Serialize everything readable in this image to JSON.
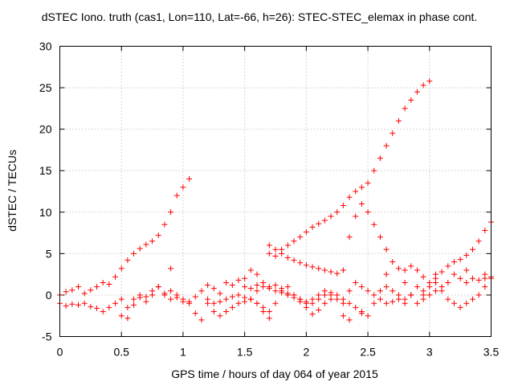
{
  "chart_data": {
    "type": "scatter",
    "title": "dSTEC Iono. truth (cas1, Lon=110, Lat=-66, h=26): STEC-STEC_elemax in phase cont.",
    "xlabel": "GPS time / hours of day 064 of year 2015",
    "ylabel": "dSTEC  / TECUs",
    "xlim": [
      0,
      3.5
    ],
    "ylim": [
      -5,
      30
    ],
    "xticks": [
      "0",
      "0.5",
      "1",
      "1.5",
      "2",
      "2.5",
      "3",
      "3.5"
    ],
    "yticks": [
      "-5",
      "0",
      "5",
      "10",
      "15",
      "20",
      "25",
      "30"
    ],
    "grid": true,
    "marker": "+",
    "color": "#ff0000",
    "series": [
      {
        "x": [
          0.0,
          0.05,
          0.1,
          0.15,
          0.2,
          0.25,
          0.3,
          0.35,
          0.4,
          0.45,
          0.5,
          0.55,
          0.6,
          0.65,
          0.7,
          0.75,
          0.8,
          0.85,
          0.9,
          0.95,
          1.0,
          1.05
        ],
        "y": [
          0.0,
          0.4,
          0.6,
          1.0,
          0.2,
          0.6,
          1.0,
          1.5,
          1.3,
          2.2,
          3.2,
          4.2,
          5.0,
          5.6,
          6.1,
          6.5,
          7.2,
          8.5,
          10.0,
          12.0,
          13.0,
          14.0
        ]
      },
      {
        "x": [
          0.0,
          0.05,
          0.1,
          0.15,
          0.2,
          0.25,
          0.3,
          0.35,
          0.4,
          0.45,
          0.5,
          0.55,
          0.6,
          0.65,
          0.7,
          0.75,
          0.8,
          0.85,
          0.9,
          0.95,
          1.0,
          1.05,
          1.1,
          1.15,
          1.2,
          1.25,
          1.3,
          1.35,
          1.4,
          1.45,
          1.5,
          1.55,
          1.6,
          1.65,
          1.7
        ],
        "y": [
          -1.0,
          -1.3,
          -1.1,
          -1.2,
          -1.0,
          -1.4,
          -1.6,
          -2.0,
          -1.5,
          -1.0,
          -2.5,
          -2.8,
          -0.5,
          -0.3,
          -0.8,
          0.5,
          1.0,
          0.2,
          -0.5,
          -0.3,
          -0.8,
          -1.0,
          -2.2,
          -3.0,
          -1.0,
          -2.0,
          -2.5,
          -2.0,
          -1.5,
          -1.0,
          -0.8,
          -0.5,
          -1.0,
          -2.0,
          -2.8
        ]
      },
      {
        "x": [
          0.5,
          0.55,
          0.6,
          0.65,
          0.7,
          0.75,
          0.8,
          0.85,
          0.9,
          0.95,
          1.0,
          1.05,
          1.1,
          1.15,
          1.2,
          1.25,
          1.3,
          1.35,
          1.4,
          1.45,
          1.5,
          1.55,
          1.6,
          1.65,
          1.7,
          1.75,
          1.8,
          1.85,
          1.9,
          1.95,
          2.0,
          2.05,
          2.1,
          2.15,
          2.2
        ],
        "y": [
          -0.5,
          -1.5,
          -1.2,
          0.0,
          -0.2,
          0.0,
          1.0,
          0.0,
          0.5,
          0.0,
          -0.5,
          -0.8,
          -0.2,
          0.5,
          1.2,
          0.8,
          0.2,
          1.5,
          1.2,
          1.8,
          2.0,
          3.0,
          2.5,
          1.5,
          1.0,
          1.2,
          0.8,
          0.2,
          0.0,
          -0.8,
          -1.5,
          -2.3,
          -1.8,
          -1.0,
          -0.5
        ]
      },
      {
        "x": [
          1.7,
          1.75,
          1.8,
          1.85,
          1.9,
          1.95,
          2.0,
          2.05,
          2.1,
          2.15,
          2.2,
          2.25,
          2.3,
          2.35,
          2.4,
          2.45,
          2.5,
          2.55,
          2.6,
          2.65,
          2.7,
          2.75,
          2.8,
          2.85,
          2.9,
          2.95,
          3.0
        ],
        "y": [
          5.0,
          4.7,
          5.5,
          6.0,
          6.5,
          7.0,
          7.6,
          8.2,
          8.6,
          9.0,
          9.5,
          10.0,
          10.8,
          11.8,
          12.5,
          13.0,
          13.5,
          15.0,
          16.5,
          18.0,
          19.5,
          21.0,
          22.5,
          23.5,
          24.5,
          25.3,
          25.8
        ]
      },
      {
        "x": [
          1.7,
          1.75,
          1.8,
          1.85,
          1.9,
          1.95,
          2.0,
          2.05,
          2.1,
          2.15,
          2.2,
          2.25,
          2.3,
          2.35,
          2.4,
          2.45,
          2.5,
          2.55,
          2.6,
          2.65,
          2.7,
          2.75,
          2.8,
          2.85,
          2.9,
          2.95,
          3.0,
          3.05,
          3.1,
          3.15,
          3.2,
          3.25,
          3.3,
          3.35,
          3.4,
          3.45,
          3.5
        ],
        "y": [
          6.0,
          5.5,
          5.0,
          4.5,
          4.2,
          3.9,
          3.6,
          3.4,
          3.2,
          3.0,
          2.8,
          2.6,
          3.0,
          7.0,
          9.5,
          11.0,
          10.0,
          8.5,
          7.0,
          5.5,
          4.0,
          3.2,
          3.0,
          3.5,
          3.0,
          2.2,
          1.5,
          2.0,
          2.8,
          3.5,
          4.0,
          4.3,
          4.8,
          5.5,
          6.5,
          7.8,
          8.8
        ]
      },
      {
        "x": [
          1.2,
          1.25,
          1.3,
          1.35,
          1.4,
          1.45,
          1.5,
          1.55,
          1.6,
          1.65,
          1.7,
          1.75,
          1.8,
          1.85,
          1.9,
          1.95,
          2.0,
          2.05,
          2.1,
          2.15,
          2.2,
          2.25,
          2.3,
          2.35,
          2.4,
          2.45,
          2.5,
          2.55,
          2.6,
          2.65,
          2.7,
          2.75,
          2.8,
          2.85,
          2.9,
          2.95,
          3.0,
          3.05,
          3.1,
          3.15,
          3.2,
          3.25,
          3.3,
          3.35,
          3.4,
          3.45,
          3.5
        ],
        "y": [
          -0.5,
          -1.0,
          -0.8,
          -0.5,
          -0.2,
          0.0,
          -0.3,
          -0.5,
          -1.0,
          -1.5,
          -2.0,
          -1.0,
          0.5,
          1.0,
          0.0,
          -0.5,
          -1.0,
          -0.5,
          0.0,
          0.5,
          0.0,
          -0.5,
          -1.0,
          0.5,
          1.5,
          1.0,
          0.5,
          0.0,
          -0.5,
          -1.0,
          -0.8,
          -0.5,
          -1.0,
          0.0,
          1.0,
          0.5,
          1.0,
          1.5,
          0.5,
          -0.5,
          -1.0,
          -1.5,
          -1.0,
          -0.5,
          0.0,
          1.0,
          2.0
        ]
      },
      {
        "x": [
          1.5,
          1.55,
          1.6,
          1.65,
          1.7,
          1.75,
          1.8,
          1.85,
          1.9,
          1.95,
          2.0,
          2.05,
          2.1,
          2.15,
          2.2,
          2.25,
          2.3,
          2.35,
          2.4,
          2.45,
          2.5,
          2.55,
          2.6,
          2.65,
          2.7,
          2.75,
          2.8,
          2.85,
          2.9,
          2.95,
          3.0,
          3.05,
          3.1,
          3.15,
          3.2,
          3.25,
          3.3,
          3.35,
          3.4,
          3.45,
          3.5
        ],
        "y": [
          1.0,
          0.8,
          1.2,
          1.0,
          0.8,
          0.5,
          0.3,
          0.0,
          -0.3,
          -0.5,
          -0.8,
          -1.0,
          -0.5,
          0.0,
          0.3,
          0.0,
          -0.5,
          -1.0,
          -1.5,
          -2.0,
          -2.5,
          -1.0,
          0.5,
          1.0,
          0.5,
          0.0,
          -0.5,
          0.0,
          -1.0,
          -0.5,
          0.0,
          0.5,
          1.0,
          1.5,
          2.5,
          2.0,
          1.5,
          2.0,
          1.8,
          2.0,
          2.2
        ]
      },
      {
        "x": [
          0.9,
          1.6,
          2.3,
          2.35,
          2.45,
          2.65,
          2.8,
          2.95,
          3.05,
          3.3,
          3.45
        ],
        "y": [
          3.2,
          0.5,
          -2.5,
          -3.0,
          -2.2,
          2.5,
          1.5,
          0.0,
          2.5,
          3.0,
          2.5
        ]
      }
    ]
  }
}
